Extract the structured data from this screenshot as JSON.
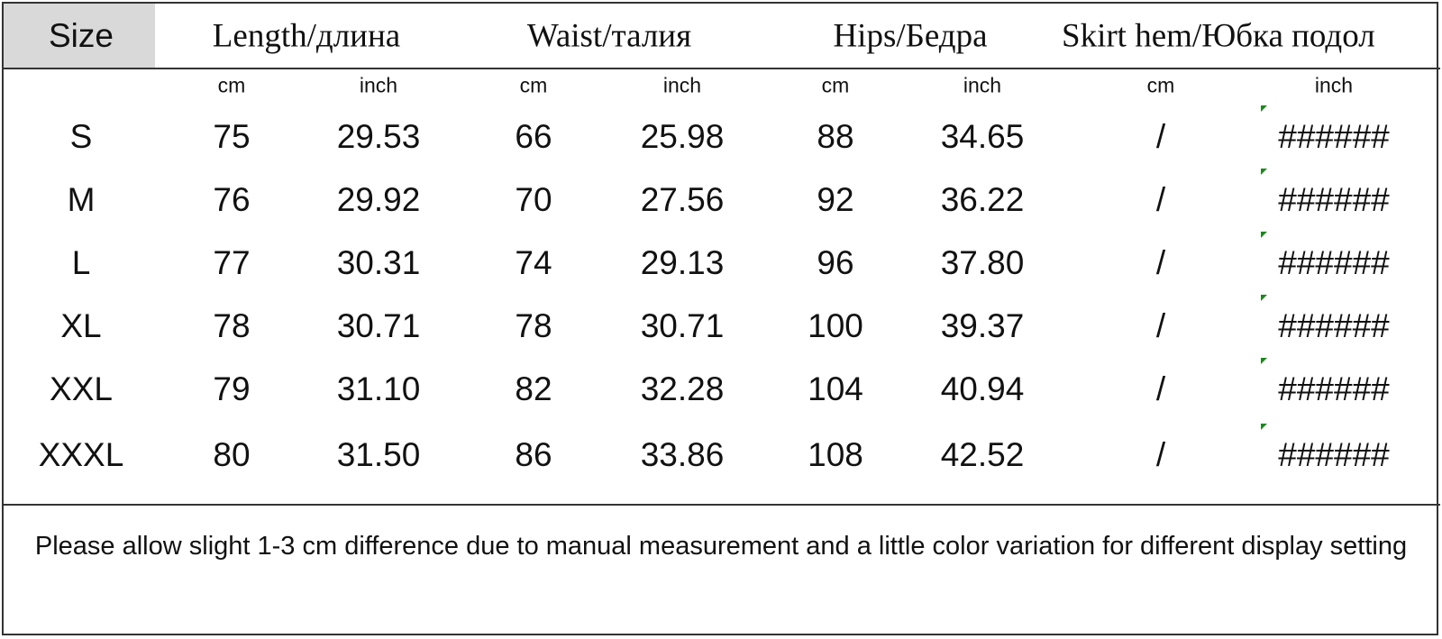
{
  "table": {
    "header": [
      "Size",
      "Length/длина",
      "Waist/талия",
      "Hips/Бедра",
      "Skirt hem/Юбка подол"
    ],
    "units": [
      "cm",
      "inch",
      "cm",
      "inch",
      "cm",
      "inch",
      "cm",
      "inch"
    ],
    "rows": [
      [
        "S",
        "75",
        "29.53",
        "66",
        "25.98",
        "88",
        "34.65",
        "/",
        "######"
      ],
      [
        "M",
        "76",
        "29.92",
        "70",
        "27.56",
        "92",
        "36.22",
        "/",
        "######"
      ],
      [
        "L",
        "77",
        "30.31",
        "74",
        "29.13",
        "96",
        "37.80",
        "/",
        "######"
      ],
      [
        "XL",
        "78",
        "30.71",
        "78",
        "30.71",
        "100",
        "39.37",
        "/",
        "######"
      ],
      [
        "XXL",
        "79",
        "31.10",
        "82",
        "32.28",
        "104",
        "40.94",
        "/",
        "######"
      ],
      [
        "XXXL",
        "80",
        "31.50",
        "86",
        "33.86",
        "108",
        "42.52",
        "/",
        "######"
      ]
    ]
  },
  "note": "Please allow slight 1-3 cm difference due to manual measurement and a little color variation for different display setting"
}
